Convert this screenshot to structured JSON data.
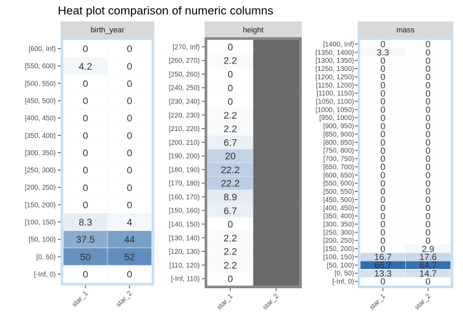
{
  "chart_data": {
    "type": "heatmap",
    "title": "Heat plot comparison of numeric columns",
    "colors": {
      "low": "#ffffff",
      "high": "#2f6aa8",
      "background": "#c6dff2",
      "missing": "#696969",
      "missing_border": "#878787",
      "strip": "#d9d9d9"
    },
    "panels": [
      {
        "name": "birth_year",
        "columns": [
          "star_1",
          "star_2"
        ],
        "rows": [
          "[600, Inf)",
          "[550, 600)",
          "[500, 550)",
          "[450, 500)",
          "[400, 450)",
          "[350, 400)",
          "[300, 350)",
          "[250, 300)",
          "[200, 250)",
          "[150, 200)",
          "[100, 150)",
          "[50, 100)",
          "[0, 50)",
          "[-Inf, 0)"
        ],
        "values": [
          [
            "0",
            "0"
          ],
          [
            "4.2",
            "0"
          ],
          [
            "0",
            "0"
          ],
          [
            "0",
            "0"
          ],
          [
            "0",
            "0"
          ],
          [
            "0",
            "0"
          ],
          [
            "0",
            "0"
          ],
          [
            "0",
            "0"
          ],
          [
            "0",
            "0"
          ],
          [
            "0",
            "0"
          ],
          [
            "8.3",
            "4"
          ],
          [
            "37.5",
            "44"
          ],
          [
            "50",
            "52"
          ],
          [
            "0",
            "0"
          ]
        ]
      },
      {
        "name": "height",
        "columns": [
          "star_1",
          "star_2"
        ],
        "rows": [
          "[270, Inf)",
          "[260, 270)",
          "[250, 260)",
          "[240, 250)",
          "[230, 240)",
          "[220, 230)",
          "[210, 220)",
          "[200, 210)",
          "[190, 200)",
          "[180, 190)",
          "[170, 180)",
          "[160, 170)",
          "[150, 160)",
          "[140, 150)",
          "[130, 140)",
          "[120, 130)",
          "[110, 120)",
          "[-Inf, 110)"
        ],
        "values": [
          [
            "0",
            null
          ],
          [
            "2.2",
            null
          ],
          [
            "0",
            null
          ],
          [
            "0",
            null
          ],
          [
            "0",
            null
          ],
          [
            "2.2",
            null
          ],
          [
            "2.2",
            null
          ],
          [
            "6.7",
            null
          ],
          [
            "20",
            null
          ],
          [
            "22.2",
            null
          ],
          [
            "22.2",
            null
          ],
          [
            "8.9",
            null
          ],
          [
            "6.7",
            null
          ],
          [
            "0",
            null
          ],
          [
            "2.2",
            null
          ],
          [
            "2.2",
            null
          ],
          [
            "2.2",
            null
          ],
          [
            "0",
            null
          ]
        ]
      },
      {
        "name": "mass",
        "columns": [
          "star_1",
          "star_2"
        ],
        "rows": [
          "[1400, Inf)",
          "[1350, 1400)",
          "[1300, 1350)",
          "[1250, 1300)",
          "[1200, 1250)",
          "[1150, 1200)",
          "[1100, 1150)",
          "[1050, 1100)",
          "[1000, 1050)",
          "[950, 1000)",
          "[900, 950)",
          "[850, 900)",
          "[800, 850)",
          "[750, 800)",
          "[700, 750)",
          "[650, 700)",
          "[600, 650)",
          "[550, 600)",
          "[500, 550)",
          "[450, 500)",
          "[400, 450)",
          "[350, 400)",
          "[300, 350)",
          "[250, 300)",
          "[200, 250)",
          "[150, 200)",
          "[100, 150)",
          "[50, 100)",
          "[0, 50)",
          "[-Inf, 0)"
        ],
        "values": [
          [
            "0",
            "0"
          ],
          [
            "3.3",
            "0"
          ],
          [
            "0",
            "0"
          ],
          [
            "0",
            "0"
          ],
          [
            "0",
            "0"
          ],
          [
            "0",
            "0"
          ],
          [
            "0",
            "0"
          ],
          [
            "0",
            "0"
          ],
          [
            "0",
            "0"
          ],
          [
            "0",
            "0"
          ],
          [
            "0",
            "0"
          ],
          [
            "0",
            "0"
          ],
          [
            "0",
            "0"
          ],
          [
            "0",
            "0"
          ],
          [
            "0",
            "0"
          ],
          [
            "0",
            "0"
          ],
          [
            "0",
            "0"
          ],
          [
            "0",
            "0"
          ],
          [
            "0",
            "0"
          ],
          [
            "0",
            "0"
          ],
          [
            "0",
            "0"
          ],
          [
            "0",
            "0"
          ],
          [
            "0",
            "0"
          ],
          [
            "0",
            "0"
          ],
          [
            "0",
            "0"
          ],
          [
            "0",
            "2.9"
          ],
          [
            "16.7",
            "17.6"
          ],
          [
            "66.7",
            "64.7"
          ],
          [
            "13.3",
            "14.7"
          ],
          [
            "0",
            "0"
          ]
        ]
      }
    ]
  }
}
